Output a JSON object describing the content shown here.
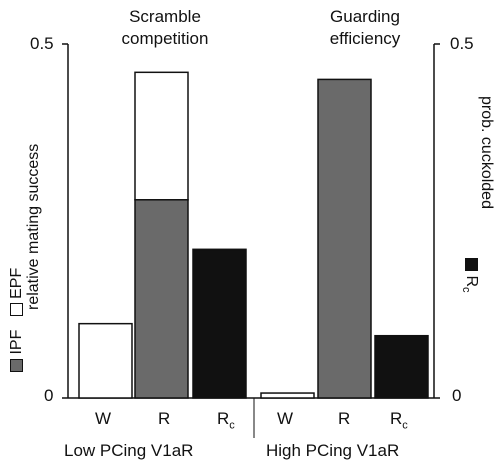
{
  "chart_data": {
    "type": "bar",
    "panels": [
      {
        "title_line1": "Scramble",
        "title_line2": "competition",
        "group_label": "Low PCing V1aR",
        "categories": [
          "W",
          "R",
          "Rc"
        ],
        "series": [
          {
            "name": "IPF",
            "values": [
              0,
              0.28,
              0.21
            ]
          },
          {
            "name": "EPF",
            "values": [
              0.105,
              0.18,
              0
            ]
          }
        ]
      },
      {
        "title_line1": "Guarding",
        "title_line2": "efficiency",
        "group_label": "High PCing V1aR",
        "categories": [
          "W",
          "R",
          "Rc"
        ],
        "series": [
          {
            "name": "prob. cuckolded",
            "values": [
              0.007,
              0.45,
              0.088
            ]
          }
        ]
      }
    ],
    "left_axis": {
      "label": "relative mating success",
      "ticks": [
        "0",
        "0.5"
      ],
      "ylim": [
        0,
        0.5
      ]
    },
    "right_axis": {
      "label": "prob. cuckolded",
      "ticks": [
        "0",
        "0.5"
      ],
      "ylim": [
        0,
        0.5
      ]
    },
    "legend": {
      "ipf": "IPF",
      "epf": "EPF",
      "rc": "R"
    }
  },
  "colors": {
    "ipf": "#6a6a6a",
    "epf": "#ffffff",
    "rc": "#111111",
    "outline": "#111111"
  },
  "tick_labels": {
    "W": "W",
    "R": "R",
    "Rc_main": "R",
    "Rc_sub": "c"
  }
}
